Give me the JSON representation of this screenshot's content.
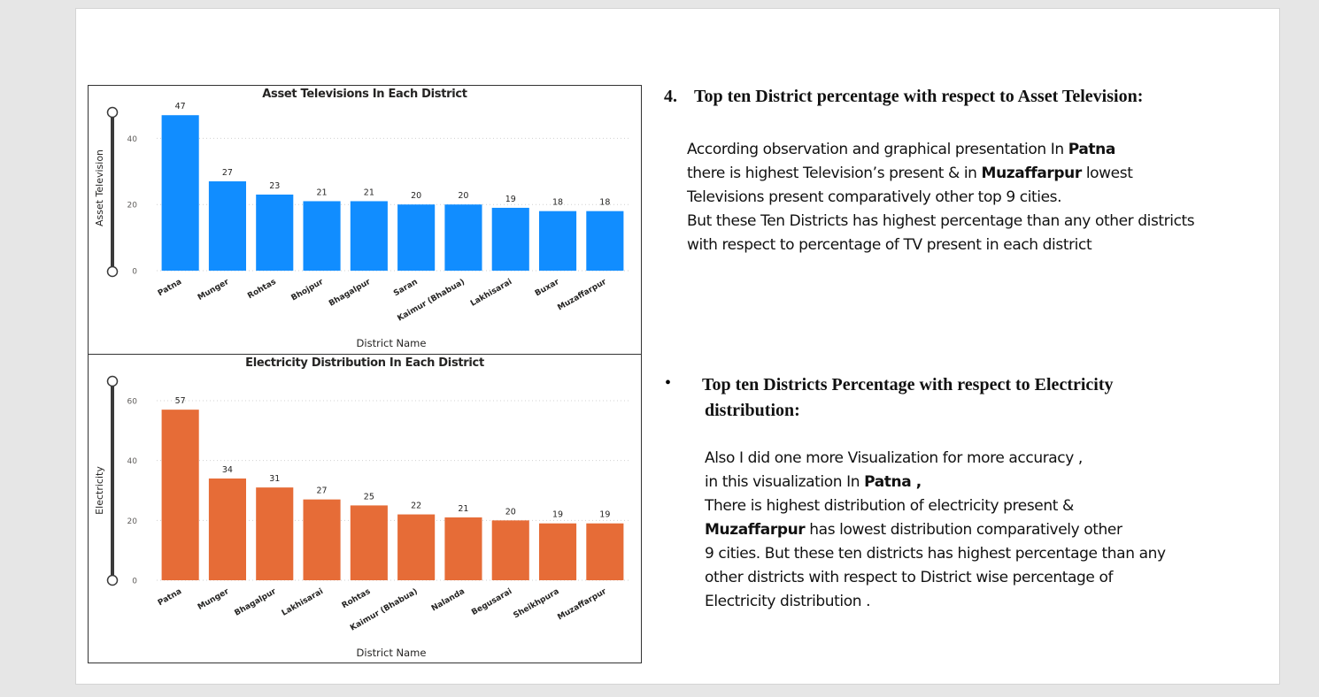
{
  "section_tv": {
    "number": "4.",
    "heading": "Top ten District percentage with respect to Asset Television:",
    "p1_pre": "According observation and graphical presentation In ",
    "p1_bold1": "Patna",
    "p2_pre": "there is highest Television’s present & in ",
    "p2_bold": "Muzaffarpur",
    "p2_post": " lowest",
    "p3": "Televisions present comparatively other top 9 cities.",
    "p4": "But these Ten Districts has highest percentage than any other districts",
    "p5": "with respect to percentage of TV present in each district"
  },
  "section_el": {
    "bullet": "•",
    "heading_line1": "Top ten Districts Percentage with respect to Electricity",
    "heading_line2": "distribution:",
    "l1": "Also I did one more Visualization for more accuracy ,",
    "l2_pre": "in this visualization In ",
    "l2_bold": "Patna ,",
    "l3": "There is highest distribution of electricity present  &",
    "l4_bold": "Muzaffarpur",
    "l4_post": " has lowest distribution  comparatively other",
    "l5": "9 cities. But these ten districts has highest  percentage than any",
    "l6": "other districts with respect to District wise percentage of",
    "l7": "Electricity distribution ."
  },
  "chart_data": [
    {
      "type": "bar",
      "title": "Asset Televisions In Each District",
      "xlabel": "District Name",
      "ylabel": "Asset Television",
      "color": "#118DFF",
      "categories": [
        "Patna",
        "Munger",
        "Rohtas",
        "Bhojpur",
        "Bhagalpur",
        "Saran",
        "Kaimur (Bhabua)",
        "Lakhisarai",
        "Buxar",
        "Muzaffarpur"
      ],
      "values": [
        47,
        27,
        23,
        21,
        21,
        20,
        20,
        19,
        18,
        18
      ],
      "ylim": [
        0,
        50
      ],
      "yticks": [
        0,
        20,
        40
      ],
      "grid": true,
      "data_labels": true
    },
    {
      "type": "bar",
      "title": "Electricity Distribution In Each District",
      "xlabel": "District Name",
      "ylabel": "Electricity",
      "color": "#E66C37",
      "categories": [
        "Patna",
        "Munger",
        "Bhagalpur",
        "Lakhisarai",
        "Rohtas",
        "Kaimur (Bhabua)",
        "Nalanda",
        "Begusarai",
        "Sheikhpura",
        "Muzaffarpur"
      ],
      "values": [
        57,
        34,
        31,
        27,
        25,
        22,
        21,
        20,
        19,
        19
      ],
      "ylim": [
        0,
        60
      ],
      "yticks": [
        0,
        20,
        40,
        60
      ],
      "grid": true,
      "data_labels": true
    }
  ]
}
